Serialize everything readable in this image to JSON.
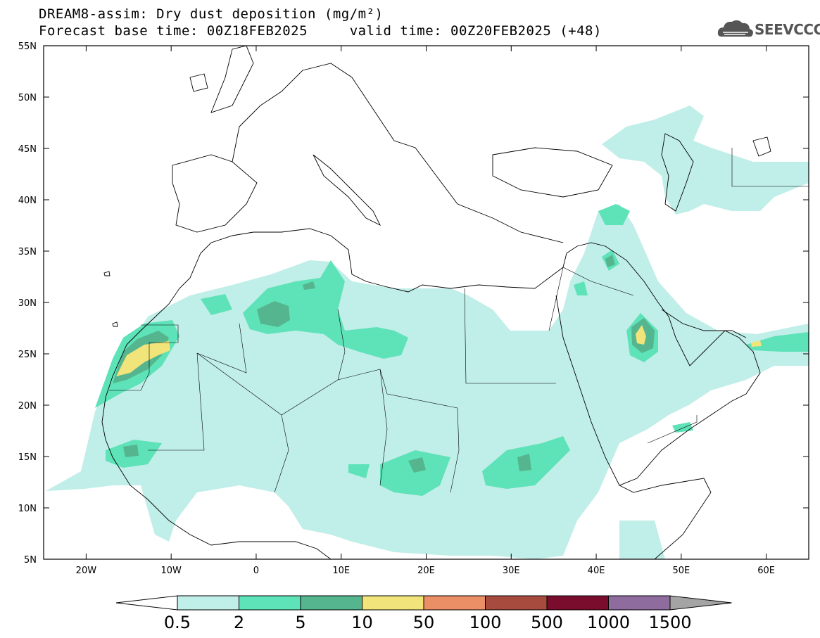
{
  "title": {
    "line1": "DREAM8-assim: Dry dust deposition (mg/m²)",
    "line2": "Forecast base time: 00Z18FEB2025     valid time: 00Z20FEB2025 (+48)"
  },
  "logo": {
    "text": "SEEVCCC",
    "icon": "cloud-logo-icon"
  },
  "map": {
    "lat_labels": [
      "55N",
      "50N",
      "45N",
      "40N",
      "35N",
      "30N",
      "25N",
      "20N",
      "15N",
      "10N",
      "5N"
    ],
    "lon_labels": [
      "20W",
      "10W",
      "0",
      "10E",
      "20E",
      "30E",
      "40E",
      "50E",
      "60E"
    ],
    "lat_range": [
      5,
      55
    ],
    "lon_range": [
      -25,
      65
    ]
  },
  "colorbar": {
    "labels": [
      "0.5",
      "2",
      "5",
      "10",
      "50",
      "100",
      "500",
      "1000",
      "1500"
    ],
    "colors": [
      "#c0eee8",
      "#5ee2b8",
      "#55b58e",
      "#f0e47a",
      "#ea8f66",
      "#a64b3e",
      "#7a0d2d",
      "#8e6c9e",
      "#a4a4a4"
    ],
    "under_color": "#ffffff"
  }
}
